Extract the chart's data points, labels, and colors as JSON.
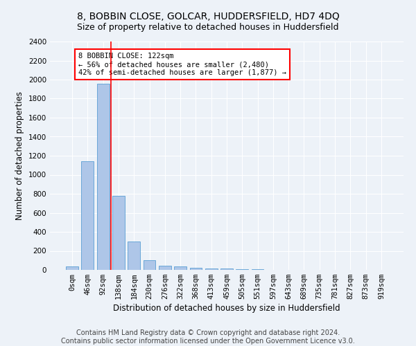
{
  "title": "8, BOBBIN CLOSE, GOLCAR, HUDDERSFIELD, HD7 4DQ",
  "subtitle": "Size of property relative to detached houses in Huddersfield",
  "xlabel": "Distribution of detached houses by size in Huddersfield",
  "ylabel": "Number of detached properties",
  "bar_labels": [
    "0sqm",
    "46sqm",
    "92sqm",
    "138sqm",
    "184sqm",
    "230sqm",
    "276sqm",
    "322sqm",
    "368sqm",
    "413sqm",
    "459sqm",
    "505sqm",
    "551sqm",
    "597sqm",
    "643sqm",
    "689sqm",
    "735sqm",
    "781sqm",
    "827sqm",
    "873sqm",
    "919sqm"
  ],
  "bar_values": [
    35,
    1145,
    1960,
    775,
    300,
    100,
    45,
    38,
    25,
    18,
    15,
    5,
    5,
    0,
    0,
    0,
    0,
    0,
    0,
    0,
    0
  ],
  "bar_color": "#aec6e8",
  "bar_edge_color": "#5a9fd4",
  "ylim": [
    0,
    2400
  ],
  "yticks": [
    0,
    200,
    400,
    600,
    800,
    1000,
    1200,
    1400,
    1600,
    1800,
    2000,
    2200,
    2400
  ],
  "vline_x": 2.5,
  "vline_color": "red",
  "annotation_text": "8 BOBBIN CLOSE: 122sqm\n← 56% of detached houses are smaller (2,480)\n42% of semi-detached houses are larger (1,877) →",
  "annotation_box_color": "white",
  "annotation_box_edge_color": "red",
  "footer_line1": "Contains HM Land Registry data © Crown copyright and database right 2024.",
  "footer_line2": "Contains public sector information licensed under the Open Government Licence v3.0.",
  "background_color": "#edf2f8",
  "plot_background_color": "#edf2f8",
  "grid_color": "white",
  "title_fontsize": 10,
  "subtitle_fontsize": 9,
  "xlabel_fontsize": 8.5,
  "ylabel_fontsize": 8.5,
  "tick_fontsize": 7.5,
  "footer_fontsize": 7,
  "annotation_fontsize": 7.5
}
